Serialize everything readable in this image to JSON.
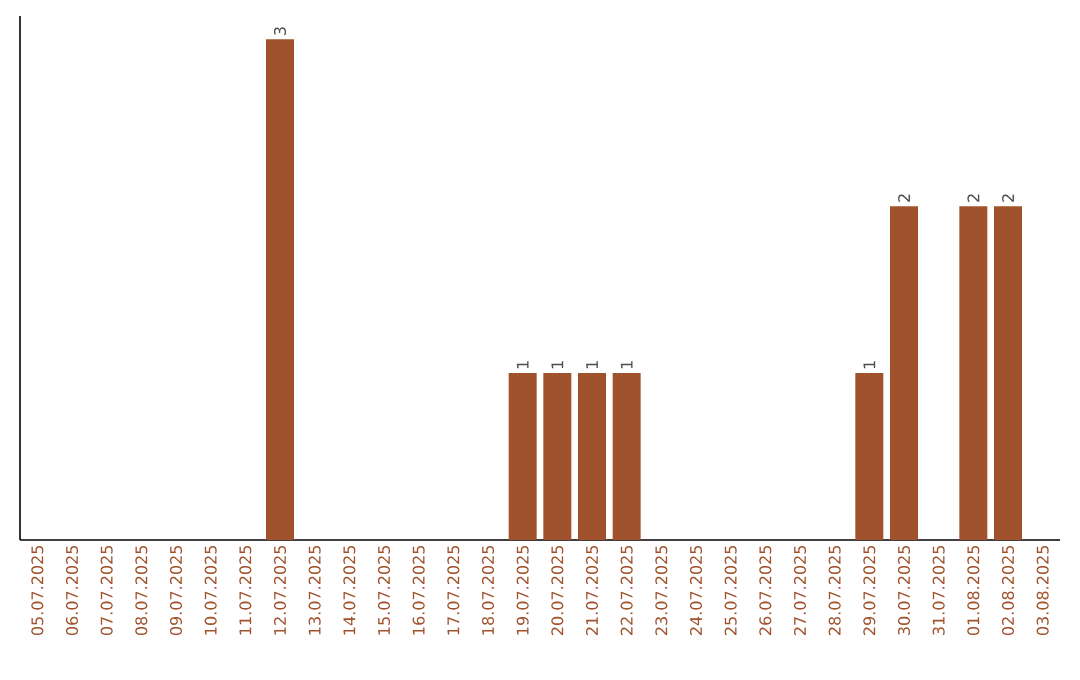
{
  "chart_data": {
    "type": "bar",
    "categories": [
      "05.07.2025",
      "06.07.2025",
      "07.07.2025",
      "08.07.2025",
      "09.07.2025",
      "10.07.2025",
      "11.07.2025",
      "12.07.2025",
      "13.07.2025",
      "14.07.2025",
      "15.07.2025",
      "16.07.2025",
      "17.07.2025",
      "18.07.2025",
      "19.07.2025",
      "20.07.2025",
      "21.07.2025",
      "22.07.2025",
      "23.07.2025",
      "24.07.2025",
      "25.07.2025",
      "26.07.2025",
      "27.07.2025",
      "28.07.2025",
      "29.07.2025",
      "30.07.2025",
      "31.07.2025",
      "01.08.2025",
      "02.08.2025",
      "03.08.2025"
    ],
    "values": [
      0,
      0,
      0,
      0,
      0,
      0,
      0,
      3,
      0,
      0,
      0,
      0,
      0,
      0,
      1,
      1,
      1,
      1,
      0,
      0,
      0,
      0,
      0,
      0,
      1,
      2,
      0,
      2,
      2,
      0
    ],
    "value_labels": [
      null,
      null,
      null,
      null,
      null,
      null,
      null,
      "3",
      null,
      null,
      null,
      null,
      null,
      null,
      "1",
      "1",
      "1",
      "1",
      null,
      null,
      null,
      null,
      null,
      null,
      "1",
      "2",
      null,
      "2",
      "2",
      null
    ],
    "color": "#a0522d",
    "ylim": [
      0,
      3.14
    ],
    "tick_labels": "x"
  }
}
